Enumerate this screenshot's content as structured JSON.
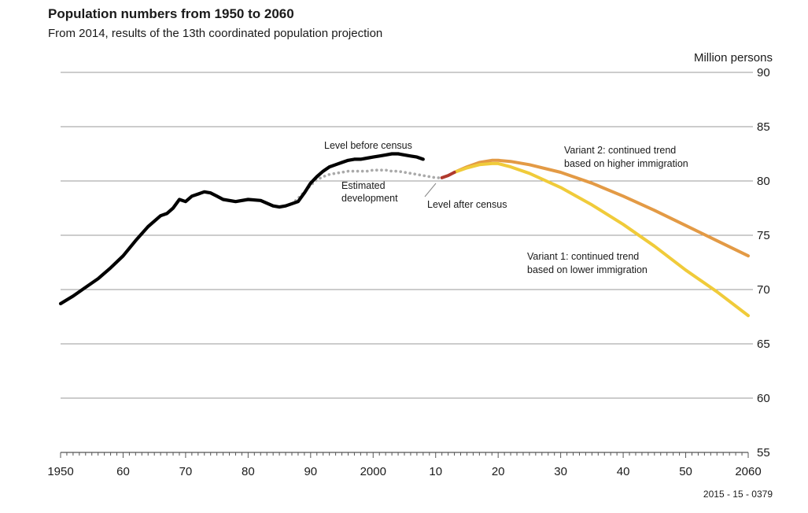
{
  "chart_data": {
    "type": "line",
    "title": "Population numbers from 1950 to 2060",
    "subtitle": "From 2014, results of the 13th coordinated population projection",
    "ylabel": "Million persons",
    "xlim": [
      1950,
      2060
    ],
    "ylim": [
      55,
      90
    ],
    "y_ticks": [
      55,
      60,
      65,
      70,
      75,
      80,
      85,
      90
    ],
    "y_tick_labels": [
      "55",
      "60",
      "65",
      "70",
      "75",
      "80",
      "85",
      "90"
    ],
    "x_ticks": [
      1950,
      1960,
      1970,
      1980,
      1990,
      2000,
      2010,
      2020,
      2030,
      2040,
      2050,
      2060
    ],
    "x_tick_labels": [
      "1950",
      "60",
      "70",
      "80",
      "90",
      "2000",
      "10",
      "20",
      "30",
      "40",
      "50",
      "2060"
    ],
    "grid": true,
    "series": [
      {
        "key": "before",
        "label": "Level before census",
        "color": "#000000",
        "style": "solid",
        "x": [
          1950,
          1952,
          1954,
          1956,
          1958,
          1960,
          1962,
          1964,
          1966,
          1967,
          1968,
          1969,
          1970,
          1971,
          1972,
          1973,
          1974,
          1975,
          1976,
          1978,
          1980,
          1982,
          1984,
          1985,
          1986,
          1988,
          1989,
          1990,
          1991,
          1992,
          1993,
          1994,
          1995,
          1996,
          1997,
          1998,
          1999,
          2000,
          2001,
          2002,
          2003,
          2004,
          2005,
          2006,
          2007,
          2008
        ],
        "y": [
          68.7,
          69.4,
          70.2,
          71.0,
          72.0,
          73.1,
          74.5,
          75.8,
          76.8,
          77.0,
          77.5,
          78.3,
          78.1,
          78.6,
          78.8,
          79.0,
          78.9,
          78.6,
          78.3,
          78.1,
          78.3,
          78.2,
          77.7,
          77.6,
          77.7,
          78.1,
          78.9,
          79.8,
          80.4,
          80.9,
          81.3,
          81.5,
          81.7,
          81.9,
          82.0,
          82.0,
          82.1,
          82.2,
          82.3,
          82.4,
          82.5,
          82.5,
          82.4,
          82.3,
          82.2,
          82.0
        ]
      },
      {
        "key": "estimated",
        "label": "Estimated development",
        "color": "#aaaaaa",
        "style": "dotted",
        "x": [
          1987,
          1988,
          1989,
          1990,
          1991,
          1992,
          1993,
          1994,
          1995,
          1996,
          1997,
          1998,
          1999,
          2000,
          2001,
          2002,
          2003,
          2004,
          2005,
          2006,
          2007,
          2008,
          2009,
          2010,
          2011
        ],
        "y": [
          77.9,
          78.4,
          79.0,
          79.6,
          80.1,
          80.4,
          80.6,
          80.7,
          80.8,
          80.9,
          80.9,
          80.9,
          80.9,
          81.0,
          81.0,
          81.0,
          80.9,
          80.9,
          80.8,
          80.7,
          80.6,
          80.5,
          80.4,
          80.3,
          80.3
        ]
      },
      {
        "key": "after",
        "label": "Level after census",
        "color": "#b03a2e",
        "style": "solid",
        "x": [
          2011,
          2012,
          2013
        ],
        "y": [
          80.3,
          80.5,
          80.8
        ]
      },
      {
        "key": "variant2",
        "label": "Variant 2: continued trend based on higher immigration",
        "color": "#e39a45",
        "style": "solid",
        "x": [
          2013,
          2015,
          2017,
          2019,
          2020,
          2022,
          2025,
          2030,
          2035,
          2040,
          2045,
          2050,
          2055,
          2060
        ],
        "y": [
          80.8,
          81.3,
          81.7,
          81.9,
          81.9,
          81.8,
          81.5,
          80.8,
          79.8,
          78.6,
          77.3,
          75.9,
          74.5,
          73.1
        ]
      },
      {
        "key": "variant1",
        "label": "Variant 1: continued trend based on lower immigration",
        "color": "#f0cb3a",
        "style": "solid",
        "x": [
          2013,
          2015,
          2017,
          2019,
          2020,
          2022,
          2025,
          2030,
          2035,
          2040,
          2045,
          2050,
          2055,
          2060
        ],
        "y": [
          80.8,
          81.2,
          81.5,
          81.6,
          81.6,
          81.3,
          80.7,
          79.4,
          77.8,
          76.0,
          74.0,
          71.8,
          69.8,
          67.6
        ]
      }
    ],
    "annotations": {
      "before_census": "Level before census",
      "estimated_line1": "Estimated",
      "estimated_line2": "development",
      "after_census": "Level after census",
      "variant2_line1": "Variant 2: continued trend",
      "variant2_line2": "based on higher immigration",
      "variant1_line1": "Variant 1: continued trend",
      "variant1_line2": "based on lower immigration"
    },
    "footer": "2015 - 15 - 0379"
  }
}
